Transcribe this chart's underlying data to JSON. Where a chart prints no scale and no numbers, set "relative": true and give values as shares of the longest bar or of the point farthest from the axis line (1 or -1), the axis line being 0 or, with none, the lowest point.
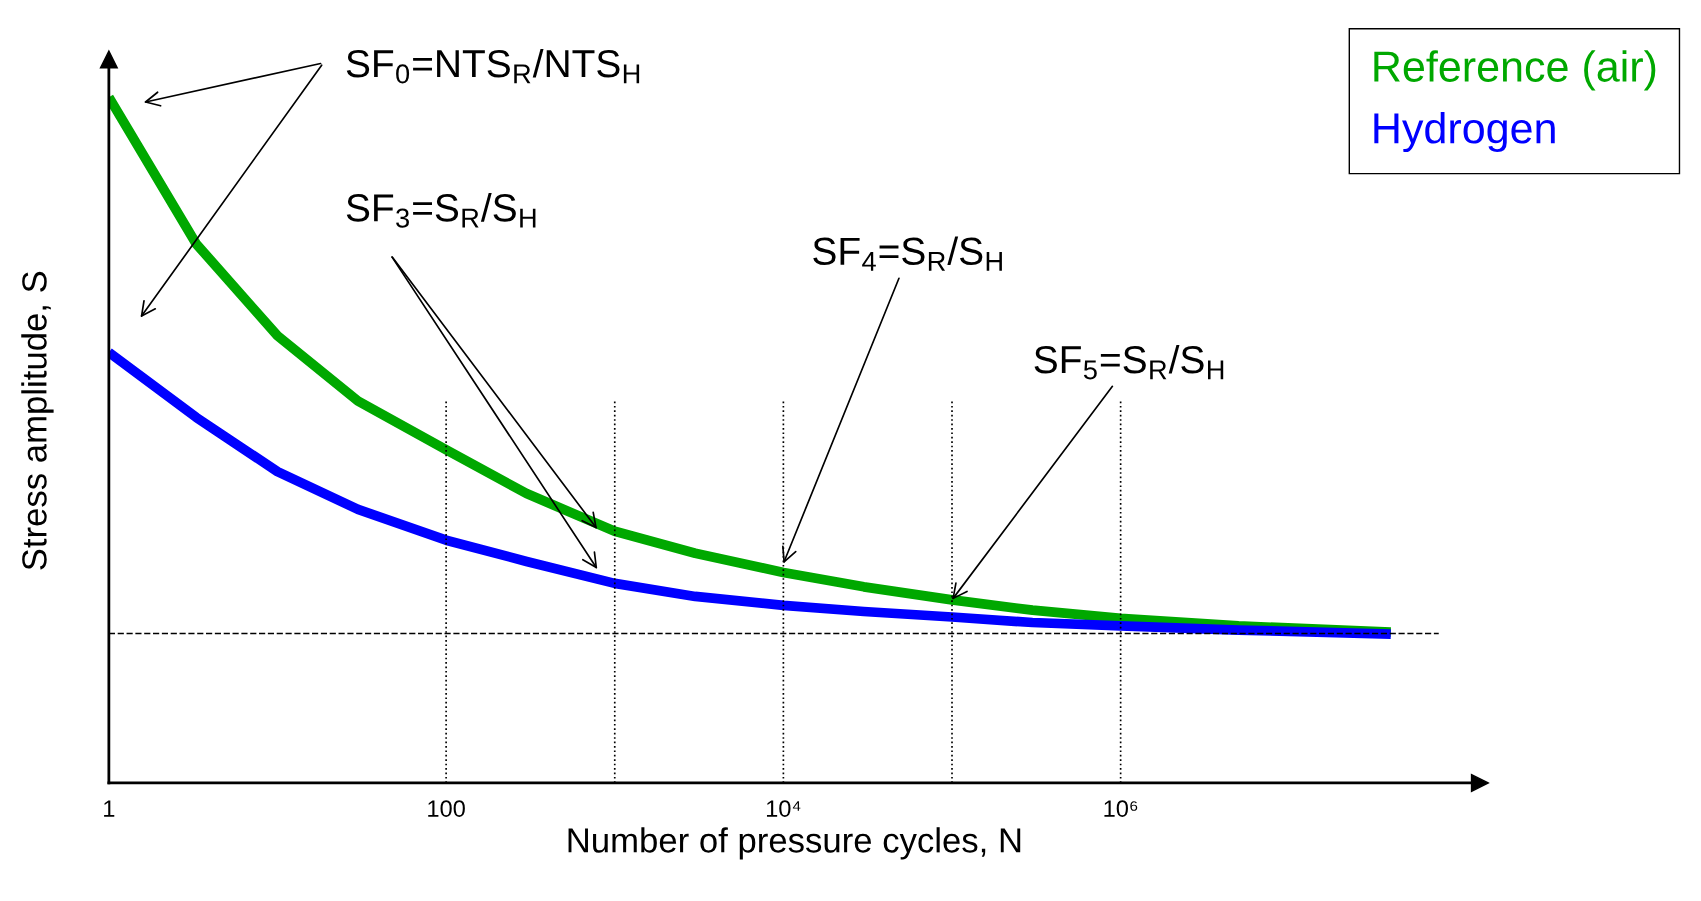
{
  "chart_data": {
    "type": "line",
    "relative": true,
    "xlabel": "Number of pressure cycles, N",
    "ylabel": "Stress amplitude, S",
    "log": "x",
    "xlim": [
      1,
      135000000
    ],
    "xticks": [
      1,
      100,
      {
        "value": 10000,
        "label": "10⁴"
      },
      {
        "value": 1000000,
        "label": "10⁶"
      }
    ],
    "tick_labels": "x",
    "grid": false,
    "legend": "top right",
    "marker": "none",
    "line_style": "solid",
    "x": [
      1,
      3.3,
      10,
      30,
      100,
      300,
      1000,
      3000,
      10000,
      30000,
      100000,
      300000,
      1000000,
      5000000,
      40000000
    ],
    "series": [
      {
        "name": "Reference (air)",
        "color": "#00a800",
        "values": [
          1.0,
          0.786,
          0.652,
          0.557,
          0.486,
          0.422,
          0.367,
          0.335,
          0.307,
          0.286,
          0.267,
          0.252,
          0.24,
          0.229,
          0.22
        ]
      },
      {
        "name": "Hydrogen",
        "color": "#0000ff",
        "values": [
          0.628,
          0.533,
          0.454,
          0.399,
          0.354,
          0.323,
          0.291,
          0.272,
          0.259,
          0.25,
          0.242,
          0.234,
          0.229,
          0.223,
          0.217
        ]
      }
    ],
    "ref_lines": [
      {
        "axis": "y",
        "value": 0.218,
        "line_style": "dashed",
        "color": "#000000"
      },
      {
        "axis": "x",
        "value": 100,
        "line_style": "dotted",
        "color": "#000000"
      },
      {
        "axis": "x",
        "value": 1000,
        "line_style": "dotted",
        "color": "#000000"
      },
      {
        "axis": "x",
        "value": 10000,
        "line_style": "dotted",
        "color": "#000000"
      },
      {
        "axis": "x",
        "value": 100000,
        "line_style": "dotted",
        "color": "#000000"
      },
      {
        "axis": "x",
        "value": 1000000,
        "line_style": "dotted",
        "color": "#000000"
      }
    ],
    "annotations": [
      "SF$_{0}$=NTS$_{R}$/NTS$_{H}$",
      "SF$_{3}$=S$_{R}$/S$_{H}$",
      {
        "text": "SF$_{4}$=S$_{R}$/S$_{H}$",
        "x": 10000,
        "y": 0.32
      },
      {
        "text": "SF$_{5}$=S$_{R}$/S$_{H}$",
        "x": 100000,
        "y": 0.267
      }
    ]
  }
}
